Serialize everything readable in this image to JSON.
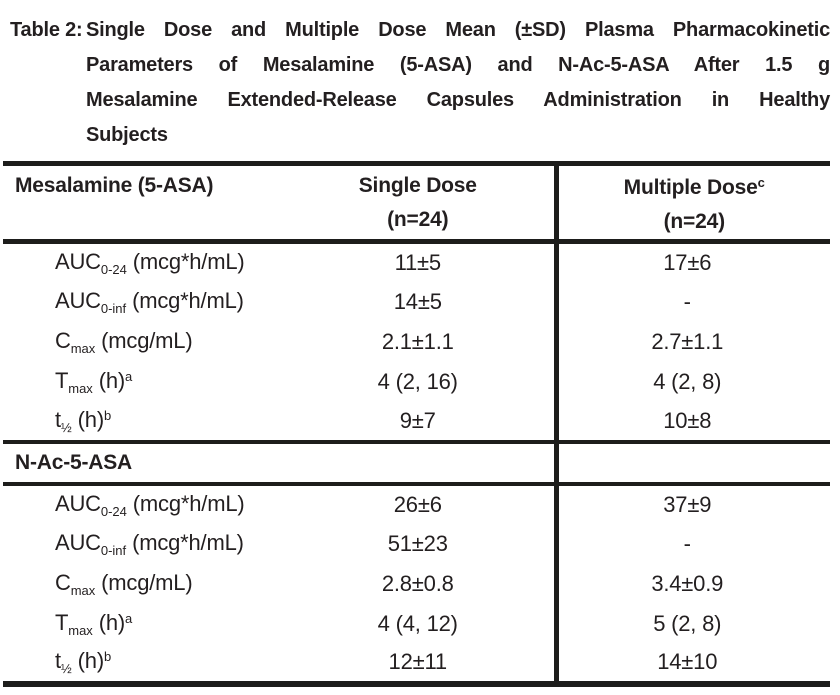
{
  "title": {
    "label": "Table 2:",
    "lines": [
      "Single Dose and Multiple Dose Mean (±SD) Plasma Pharmacokinetic",
      "Parameters of Mesalamine (5-ASA) and N-Ac-5-ASA After 1.5 g",
      "Mesalamine Extended-Release Capsules Administration in Healthy",
      "Subjects"
    ]
  },
  "table": {
    "header": {
      "col1": "Mesalamine (5-ASA)",
      "col2": {
        "line1": "Single Dose",
        "line2": "(n=24)"
      },
      "col3": {
        "line1": "Multiple Dose",
        "sup": "c",
        "line2": "(n=24)"
      }
    },
    "section2_title": "N-Ac-5-ASA",
    "rows_5asa": [
      {
        "param": {
          "base": "AUC",
          "sub": "0-24",
          "rest": " (mcg*h/mL)"
        },
        "single": "11±5",
        "multiple": "17±6"
      },
      {
        "param": {
          "base": "AUC",
          "sub": "0-inf",
          "rest": " (mcg*h/mL)"
        },
        "single": "14±5",
        "multiple": "-"
      },
      {
        "param": {
          "base": "C",
          "sub": "max",
          "rest": " (mcg/mL)"
        },
        "single": "2.1±1.1",
        "multiple": "2.7±1.1"
      },
      {
        "param": {
          "base": "T",
          "sub": "max",
          "rest": " (h)",
          "sup": "a"
        },
        "single": "4 (2, 16)",
        "multiple": "4 (2, 8)"
      },
      {
        "param": {
          "base": "t",
          "sub": "½",
          "rest": " (h)",
          "sup": "b"
        },
        "single": "9±7",
        "multiple": "10±8"
      }
    ],
    "rows_nac": [
      {
        "param": {
          "base": "AUC",
          "sub": "0-24",
          "rest": " (mcg*h/mL)"
        },
        "single": "26±6",
        "multiple": "37±9"
      },
      {
        "param": {
          "base": "AUC",
          "sub": "0-inf",
          "rest": " (mcg*h/mL)"
        },
        "single": "51±23",
        "multiple": "-"
      },
      {
        "param": {
          "base": "C",
          "sub": "max",
          "rest": " (mcg/mL)"
        },
        "single": "2.8±0.8",
        "multiple": "3.4±0.9"
      },
      {
        "param": {
          "base": "T",
          "sub": "max",
          "rest": " (h)",
          "sup": "a"
        },
        "single": "4 (4, 12)",
        "multiple": "5 (2, 8)"
      },
      {
        "param": {
          "base": "t",
          "sub": "½",
          "rest": " (h)",
          "sup": "b"
        },
        "single": "12±11",
        "multiple": "14±10"
      }
    ]
  },
  "colors": {
    "text": "#231f20",
    "rule": "#1d1d1b",
    "background": "#ffffff"
  }
}
